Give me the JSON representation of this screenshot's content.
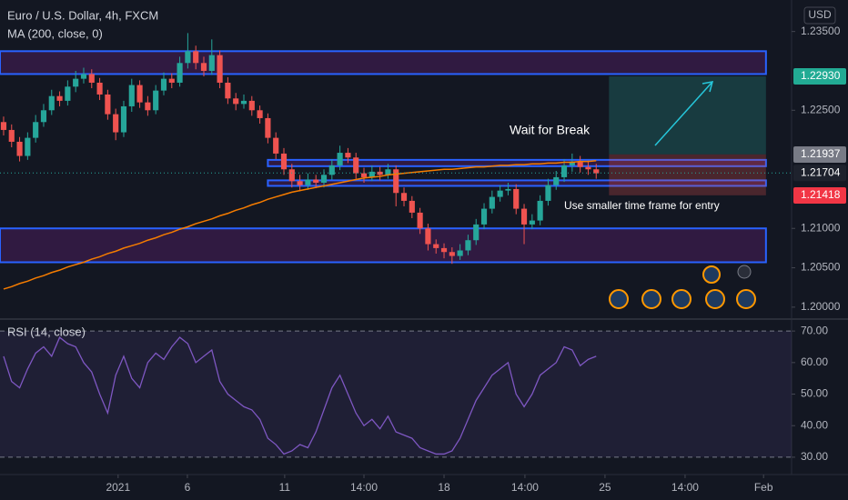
{
  "chart_data": [
    {
      "type": "candlestick",
      "title": "Euro / U.S. Dollar, 4h, FXCM",
      "currency": "USD",
      "up_color": "#26a69a",
      "down_color": "#ef5350",
      "xlim": [
        -0.45,
        98.4
      ],
      "xticks": [
        {
          "value": 14.3,
          "label": "2021"
        },
        {
          "value": 22.95,
          "label": "6"
        },
        {
          "value": 35.1,
          "label": "11"
        },
        {
          "value": 45,
          "label": "14:00"
        },
        {
          "value": 55,
          "label": "18"
        },
        {
          "value": 65.1,
          "label": "14:00"
        },
        {
          "value": 75.1,
          "label": "25"
        },
        {
          "value": 85.1,
          "label": "14:00"
        },
        {
          "value": 94.9,
          "label": "Feb"
        }
      ],
      "ylim": [
        1.1986,
        1.239
      ],
      "yticks": [
        {
          "value": 1.235,
          "label": "1.23500"
        },
        {
          "value": 1.225,
          "label": "1.22500"
        },
        {
          "value": 1.21,
          "label": "1.21000"
        },
        {
          "value": 1.205,
          "label": "1.20500"
        },
        {
          "value": 1.2,
          "label": "1.20000"
        }
      ],
      "open": [
        1.2235,
        1.2225,
        1.221,
        1.2192,
        1.2215,
        1.2235,
        1.225,
        1.2268,
        1.2262,
        1.228,
        1.229,
        1.2296,
        1.2285,
        1.227,
        1.2245,
        1.2222,
        1.2255,
        1.2282,
        1.226,
        1.225,
        1.2275,
        1.229,
        1.2285,
        1.231,
        1.2325,
        1.231,
        1.23,
        1.232,
        1.2285,
        1.2265,
        1.2258,
        1.2262,
        1.225,
        1.224,
        1.2215,
        1.2195,
        1.2175,
        1.216,
        1.2155,
        1.2162,
        1.2158,
        1.2168,
        1.218,
        1.2196,
        1.219,
        1.217,
        1.2165,
        1.2172,
        1.2168,
        1.2175,
        1.2145,
        1.2135,
        1.212,
        1.21,
        1.208,
        1.2075,
        1.207,
        1.2065,
        1.2072,
        1.2085,
        1.2105,
        1.2125,
        1.214,
        1.2148,
        1.215,
        1.2125,
        1.2105,
        1.211,
        1.2135,
        1.2155,
        1.2165,
        1.218,
        1.2185,
        1.2178,
        1.2175
      ],
      "high": [
        1.2242,
        1.2232,
        1.2216,
        1.2222,
        1.2244,
        1.2258,
        1.2276,
        1.2274,
        1.2288,
        1.23,
        1.2304,
        1.2302,
        1.2291,
        1.2276,
        1.2252,
        1.2262,
        1.229,
        1.2288,
        1.2268,
        1.2282,
        1.2298,
        1.2297,
        1.2318,
        1.2348,
        1.2332,
        1.2318,
        1.234,
        1.2326,
        1.2292,
        1.2272,
        1.227,
        1.2268,
        1.2256,
        1.2246,
        1.2222,
        1.2202,
        1.2182,
        1.2168,
        1.217,
        1.2168,
        1.2175,
        1.2188,
        1.2205,
        1.2202,
        1.2196,
        1.2177,
        1.218,
        1.2178,
        1.2182,
        1.218,
        1.2152,
        1.2141,
        1.2126,
        1.2106,
        1.2086,
        1.2081,
        1.2076,
        1.208,
        1.2092,
        1.2112,
        1.2132,
        1.2148,
        1.2155,
        1.2158,
        1.2156,
        1.2131,
        1.2118,
        1.2142,
        1.2163,
        1.2173,
        1.2188,
        1.2195,
        1.2192,
        1.2186,
        1.2182
      ],
      "low": [
        1.2218,
        1.2203,
        1.2185,
        1.2187,
        1.2209,
        1.2229,
        1.2244,
        1.2255,
        1.2256,
        1.2273,
        1.2284,
        1.2278,
        1.2263,
        1.2238,
        1.2212,
        1.2216,
        1.2248,
        1.2253,
        1.2243,
        1.2245,
        1.2269,
        1.2278,
        1.228,
        1.2303,
        1.2302,
        1.2293,
        1.2295,
        1.2278,
        1.2258,
        1.225,
        1.2252,
        1.2243,
        1.2233,
        1.2208,
        1.2188,
        1.2168,
        1.2152,
        1.2147,
        1.2149,
        1.2151,
        1.2152,
        1.2162,
        1.2174,
        1.2183,
        1.2163,
        1.2158,
        1.216,
        1.2161,
        1.2163,
        1.2128,
        1.2128,
        1.2113,
        1.2093,
        1.2072,
        1.2068,
        1.2062,
        1.2055,
        1.206,
        1.2066,
        1.2079,
        1.2099,
        1.2119,
        1.2134,
        1.2142,
        1.2118,
        1.208,
        1.2099,
        1.2104,
        1.2129,
        1.2149,
        1.2159,
        1.2172,
        1.2171,
        1.2168,
        1.2163
      ],
      "close": [
        1.2225,
        1.221,
        1.2192,
        1.2215,
        1.2235,
        1.225,
        1.2268,
        1.2262,
        1.228,
        1.229,
        1.2296,
        1.2285,
        1.227,
        1.2245,
        1.2222,
        1.2255,
        1.2282,
        1.226,
        1.225,
        1.2275,
        1.229,
        1.2285,
        1.231,
        1.2325,
        1.231,
        1.23,
        1.232,
        1.2285,
        1.2265,
        1.2258,
        1.2262,
        1.225,
        1.224,
        1.2215,
        1.2195,
        1.2175,
        1.216,
        1.2155,
        1.2162,
        1.2158,
        1.2168,
        1.218,
        1.2196,
        1.219,
        1.217,
        1.2165,
        1.2172,
        1.2168,
        1.2175,
        1.2145,
        1.2135,
        1.212,
        1.21,
        1.208,
        1.2075,
        1.207,
        1.2065,
        1.2072,
        1.2085,
        1.2105,
        1.2125,
        1.214,
        1.2148,
        1.215,
        1.2125,
        1.2105,
        1.211,
        1.2135,
        1.2155,
        1.2165,
        1.218,
        1.2185,
        1.2178,
        1.2175,
        1.217
      ],
      "ma": {
        "name": "MA (200, close, 0)",
        "color": "#f57c00",
        "values": [
          1.2023,
          1.2026,
          1.203,
          1.2033,
          1.2037,
          1.204,
          1.2044,
          1.2047,
          1.2051,
          1.2054,
          1.2057,
          1.2061,
          1.2064,
          1.2068,
          1.2071,
          1.2075,
          1.2078,
          1.2081,
          1.2085,
          1.2088,
          1.2092,
          1.2095,
          1.2099,
          1.2102,
          1.2106,
          1.2109,
          1.2112,
          1.2116,
          1.2119,
          1.2123,
          1.2126,
          1.213,
          1.2133,
          1.2137,
          1.214,
          1.2143,
          1.2146,
          1.2148,
          1.215,
          1.2152,
          1.2154,
          1.2156,
          1.2158,
          1.216,
          1.2162,
          1.2164,
          1.2165,
          1.2166,
          1.2168,
          1.2169,
          1.217,
          1.2171,
          1.2172,
          1.2173,
          1.2174,
          1.2175,
          1.2175,
          1.2176,
          1.2177,
          1.2178,
          1.2178,
          1.2179,
          1.218,
          1.218,
          1.2181,
          1.2181,
          1.2182,
          1.2182,
          1.2183,
          1.2183,
          1.2184,
          1.2184,
          1.2185,
          1.2185,
          1.2186
        ]
      },
      "zones": [
        {
          "low": 1.2296,
          "high": 1.2325,
          "color": "#9c27b0"
        },
        {
          "low": 1.2179,
          "high": 1.2187,
          "color": "#9c27b0"
        },
        {
          "low": 1.2154,
          "high": 1.2161,
          "color": "#9c27b0"
        },
        {
          "low": 1.2057,
          "high": 1.21,
          "color": "#9c27b0"
        }
      ],
      "position": {
        "target": 1.2293,
        "entry": 1.2194,
        "stop": 1.2142
      },
      "price_tags": [
        {
          "value": 1.2293,
          "label": "1.22930",
          "color": "#22ab94"
        },
        {
          "value": 1.21937,
          "label": "1.21937",
          "color": "#787b86"
        },
        {
          "value": 1.21704,
          "label": "1.21704",
          "color": "#1e222d"
        },
        {
          "value": 1.21418,
          "label": "1.21418",
          "color": "#f23645"
        }
      ],
      "annotations": [
        "Wait for Break",
        "Use smaller time frame for entry"
      ]
    },
    {
      "type": "line",
      "title": "RSI (14, close)",
      "color": "#7e57c2",
      "ylim": [
        24.5,
        73.5
      ],
      "yticks": [
        {
          "value": 70,
          "label": "70.00"
        },
        {
          "value": 60,
          "label": "60.00"
        },
        {
          "value": 50,
          "label": "50.00"
        },
        {
          "value": 40,
          "label": "40.00"
        },
        {
          "value": 30,
          "label": "30.00"
        }
      ],
      "band": [
        30,
        70
      ],
      "values": [
        62,
        54,
        52,
        58,
        63,
        65,
        62,
        68,
        66,
        65,
        60,
        57,
        50,
        44,
        56,
        62,
        55,
        52,
        60,
        63,
        61,
        65,
        68,
        66,
        60,
        62,
        64,
        54,
        50,
        48,
        46,
        45,
        42,
        36,
        34,
        31,
        32,
        34,
        33,
        38,
        45,
        52,
        56,
        50,
        44,
        40,
        42,
        39,
        43,
        38,
        37,
        36,
        33,
        32,
        31,
        31,
        32,
        36,
        42,
        48,
        52,
        56,
        58,
        60,
        50,
        46,
        50,
        56,
        58,
        60,
        65,
        64,
        59,
        61,
        62
      ]
    }
  ]
}
